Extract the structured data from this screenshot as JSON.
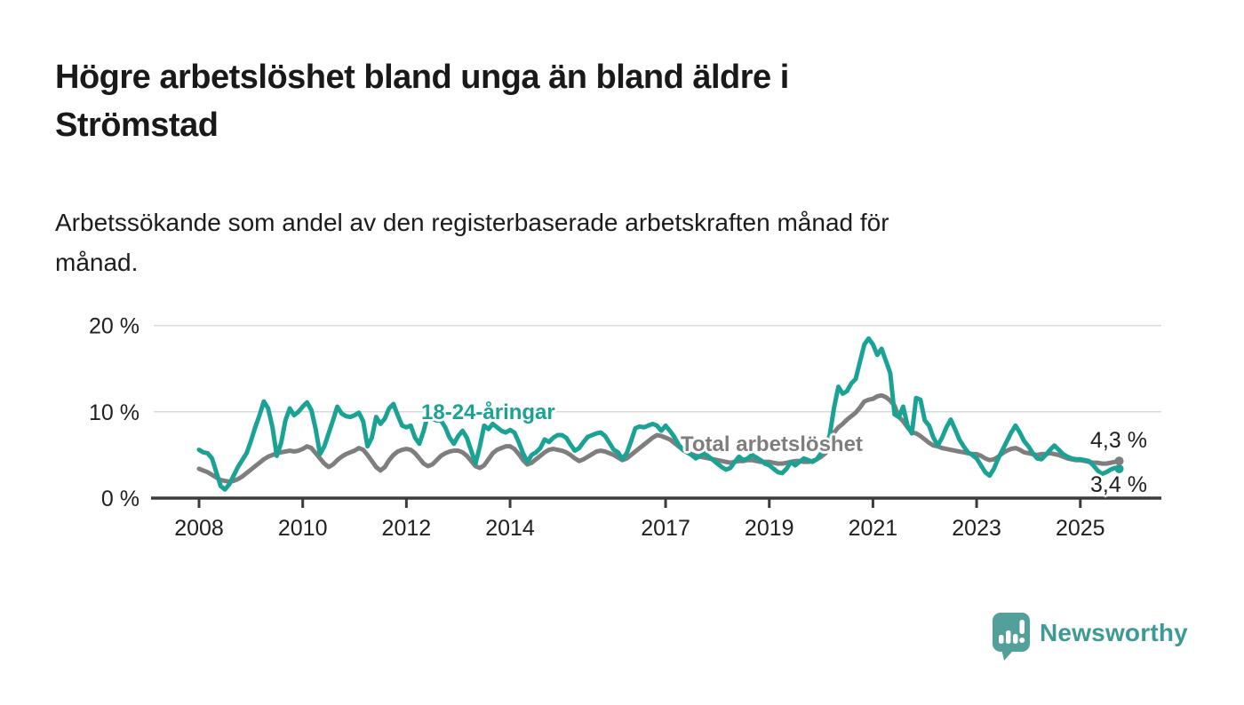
{
  "page": {
    "title_lines": [
      "Högre arbetslöshet bland unga än bland äldre i",
      "Strömstad"
    ],
    "subtitle_lines": [
      "Arbetssökande som andel av den registerbaserade arbetskraften månad för",
      "månad."
    ]
  },
  "branding": {
    "logo_text": "Newsworthy",
    "text_color": "#3d9a94",
    "mark_color": "#53a09a"
  },
  "chart_data": {
    "type": "line",
    "title": "Högre arbetslöshet bland unga än bland äldre i Strömstad",
    "xlabel": "",
    "ylabel": "",
    "x_start_year": 2008,
    "x_step_months": 1,
    "x_end": "2025-10",
    "ylim": [
      0,
      21
    ],
    "grid": "horizontal",
    "axis_color": "#3c3c3c",
    "grid_color": "#d8d8d8",
    "x_ticks": [
      {
        "year": 2008,
        "label": "2008"
      },
      {
        "year": 2010,
        "label": "2010"
      },
      {
        "year": 2012,
        "label": "2012"
      },
      {
        "year": 2014,
        "label": "2014"
      },
      {
        "year": 2017,
        "label": "2017"
      },
      {
        "year": 2019,
        "label": "2019"
      },
      {
        "year": 2021,
        "label": "2021"
      },
      {
        "year": 2023,
        "label": "2023"
      },
      {
        "year": 2025,
        "label": "2025"
      }
    ],
    "y_ticks": [
      {
        "value": 0,
        "label": "0 %"
      },
      {
        "value": 10,
        "label": "10 %"
      },
      {
        "value": 20,
        "label": "20 %"
      }
    ],
    "series": [
      {
        "name": "Total arbetslöshet",
        "color": "#7e7e7e",
        "end_label": "4,3 %",
        "end_value": 4.3,
        "values": [
          3.4,
          3.2,
          3.0,
          2.7,
          2.4,
          2.1,
          2.0,
          1.9,
          2.0,
          2.2,
          2.5,
          2.9,
          3.3,
          3.7,
          4.1,
          4.5,
          4.8,
          5.0,
          5.2,
          5.3,
          5.4,
          5.5,
          5.4,
          5.5,
          5.7,
          6.0,
          5.8,
          5.2,
          4.6,
          4.0,
          3.6,
          3.9,
          4.4,
          4.8,
          5.1,
          5.3,
          5.5,
          5.8,
          5.6,
          5.0,
          4.3,
          3.6,
          3.2,
          3.6,
          4.4,
          5.0,
          5.4,
          5.6,
          5.7,
          5.6,
          5.2,
          4.6,
          4.0,
          3.7,
          3.9,
          4.4,
          4.9,
          5.2,
          5.4,
          5.5,
          5.5,
          5.3,
          4.9,
          4.3,
          3.7,
          3.5,
          3.8,
          4.5,
          5.2,
          5.6,
          5.8,
          6.0,
          6.0,
          5.7,
          5.1,
          4.4,
          3.9,
          4.1,
          4.5,
          4.9,
          5.3,
          5.6,
          5.7,
          5.6,
          5.5,
          5.3,
          5.0,
          4.6,
          4.3,
          4.5,
          4.8,
          5.1,
          5.4,
          5.5,
          5.4,
          5.2,
          5.0,
          4.7,
          4.4,
          4.6,
          5.0,
          5.4,
          5.8,
          6.2,
          6.6,
          7.0,
          7.3,
          7.2,
          7.0,
          6.8,
          6.4,
          6.0,
          5.6,
          5.3,
          5.1,
          4.9,
          4.8,
          4.7,
          4.6,
          4.5,
          4.4,
          4.3,
          4.2,
          4.1,
          4.2,
          4.3,
          4.3,
          4.4,
          4.4,
          4.3,
          4.2,
          4.2,
          4.2,
          4.1,
          4.0,
          4.0,
          4.1,
          4.2,
          4.3,
          4.3,
          4.2,
          4.2,
          4.3,
          4.5,
          4.8,
          5.2,
          6.2,
          7.6,
          8.2,
          8.6,
          9.1,
          9.5,
          9.9,
          10.5,
          11.2,
          11.4,
          11.5,
          11.8,
          11.9,
          11.7,
          11.3,
          10.7,
          9.4,
          8.9,
          8.2,
          7.6,
          7.5,
          7.2,
          6.8,
          6.4,
          6.1,
          6.0,
          5.8,
          5.7,
          5.6,
          5.5,
          5.4,
          5.3,
          5.2,
          5.1,
          5.1,
          4.9,
          4.6,
          4.4,
          4.5,
          4.8,
          5.2,
          5.5,
          5.7,
          5.8,
          5.6,
          5.3,
          5.2,
          5.1,
          5.0,
          5.1,
          5.1,
          5.2,
          5.1,
          5.0,
          4.8,
          4.6,
          4.5,
          4.4,
          4.4,
          4.3,
          4.2,
          4.1,
          4.1,
          4.0,
          4.0,
          4.1,
          4.2,
          4.3
        ]
      },
      {
        "name": "18-24-åringar",
        "color": "#1aa394",
        "end_label": "3,4 %",
        "end_value": 3.4,
        "values": [
          5.6,
          5.3,
          5.2,
          4.6,
          3.0,
          1.4,
          1.0,
          1.6,
          2.6,
          3.6,
          4.4,
          5.2,
          6.6,
          8.2,
          9.6,
          11.2,
          10.4,
          8.2,
          4.9,
          6.4,
          9.0,
          10.4,
          9.6,
          10.0,
          10.6,
          11.1,
          10.2,
          8.0,
          5.1,
          6.0,
          7.5,
          9.0,
          10.6,
          9.8,
          9.5,
          9.4,
          9.6,
          9.9,
          8.9,
          6.0,
          7.0,
          9.4,
          8.6,
          9.2,
          10.4,
          10.9,
          9.6,
          8.4,
          8.2,
          8.4,
          7.0,
          6.3,
          7.8,
          9.7,
          9.2,
          9.0,
          9.0,
          8.2,
          7.0,
          6.3,
          7.2,
          7.8,
          7.0,
          5.5,
          4.0,
          6.0,
          8.4,
          8.0,
          8.6,
          8.2,
          7.8,
          7.6,
          7.9,
          7.6,
          6.5,
          5.2,
          4.2,
          5.0,
          5.3,
          5.8,
          6.8,
          6.5,
          7.0,
          7.3,
          7.3,
          7.0,
          6.2,
          5.5,
          5.8,
          6.5,
          7.1,
          7.3,
          7.5,
          7.6,
          7.2,
          6.4,
          5.6,
          5.3,
          4.5,
          5.2,
          6.6,
          8.1,
          8.3,
          8.2,
          8.4,
          8.6,
          8.4,
          7.8,
          8.4,
          7.8,
          7.1,
          6.2,
          5.6,
          5.3,
          5.0,
          4.6,
          4.9,
          5.2,
          4.8,
          4.4,
          4.0,
          3.6,
          3.3,
          3.5,
          4.2,
          4.8,
          4.4,
          4.6,
          5.0,
          4.7,
          4.4,
          4.0,
          3.8,
          3.4,
          3.0,
          2.9,
          3.4,
          4.2,
          3.8,
          4.2,
          4.6,
          4.4,
          4.2,
          4.5,
          5.2,
          6.0,
          7.3,
          10.5,
          12.9,
          12.1,
          12.4,
          13.3,
          13.8,
          15.8,
          17.8,
          18.5,
          17.8,
          16.6,
          17.3,
          15.9,
          14.5,
          9.7,
          9.4,
          10.6,
          8.4,
          7.5,
          11.6,
          11.4,
          9.0,
          8.4,
          7.0,
          6.1,
          7.0,
          8.2,
          9.1,
          8.0,
          6.8,
          6.0,
          5.3,
          5.0,
          4.6,
          3.8,
          3.0,
          2.6,
          3.4,
          4.6,
          5.6,
          6.6,
          7.6,
          8.4,
          7.6,
          6.6,
          6.0,
          5.2,
          4.6,
          4.5,
          5.0,
          5.6,
          6.1,
          5.6,
          5.1,
          4.8,
          4.6,
          4.5,
          4.5,
          4.4,
          4.3,
          3.8,
          3.2,
          2.8,
          3.0,
          3.3,
          3.5,
          3.4
        ]
      }
    ],
    "legend_position": "inline-labels"
  }
}
